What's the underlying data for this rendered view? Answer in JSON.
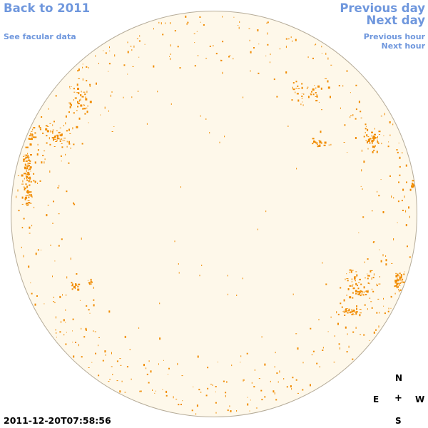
{
  "nav": {
    "back_label": "Back to 2011",
    "facular_label": "See facular data",
    "prev_day_label": "Previous day",
    "next_day_label": "Next day",
    "prev_hour_label": "Previous hour",
    "next_hour_label": "Next hour",
    "link_color": "#6f97dd"
  },
  "disk": {
    "fill_color": "#fef8ea",
    "edge_color": "#b5ab98",
    "feature_color": "#f08b00"
  },
  "compass": {
    "north": "N",
    "east": "E",
    "center": "+",
    "west": "W",
    "south": "S"
  },
  "timestamp": "2011-12-20T07:58:56"
}
